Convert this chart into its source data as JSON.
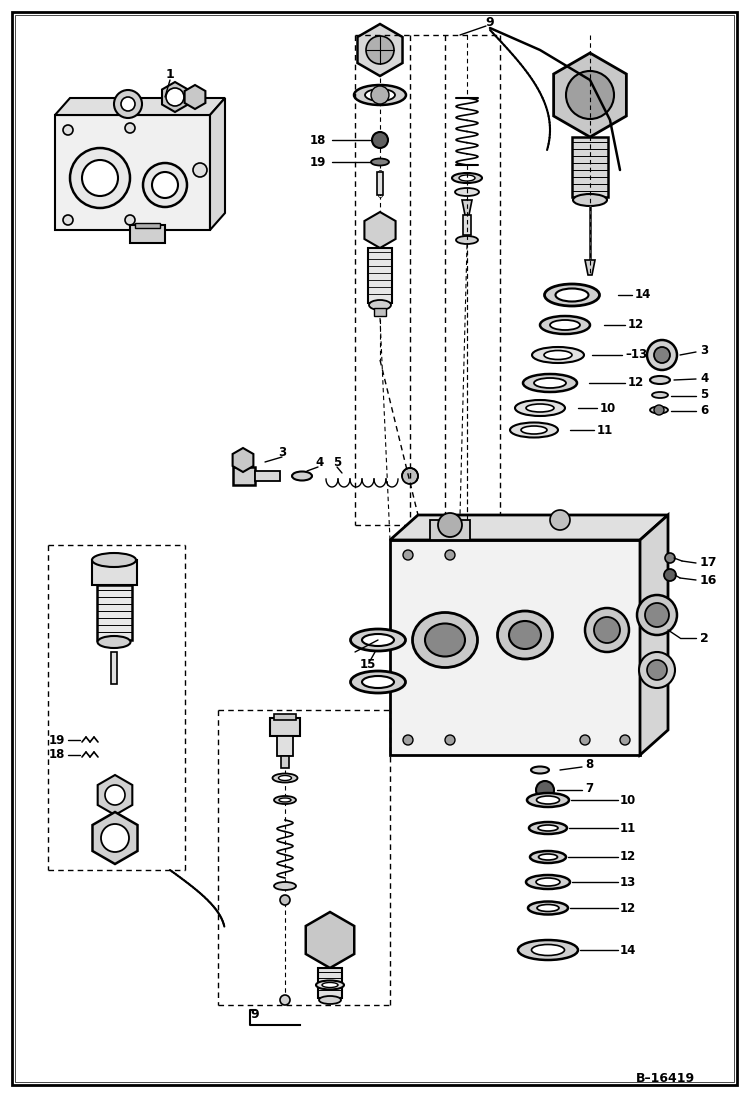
{
  "bg_color": "#ffffff",
  "lc": "#000000",
  "fig_width": 7.49,
  "fig_height": 10.97,
  "border_label": "B–16419"
}
